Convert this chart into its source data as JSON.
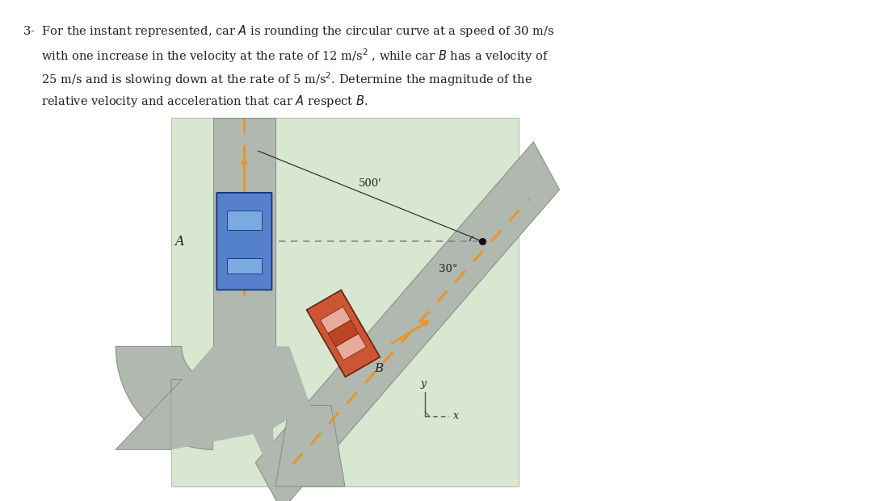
{
  "bg_color": "#FFFFFF",
  "diagram_bg": "#d8e8d0",
  "road_color": "#b0b8b0",
  "road_edge_color": "#888888",
  "dash_color": "#e8952a",
  "text_color": "#222222",
  "label_500": "500'",
  "label_30": "30°",
  "label_A": "A",
  "label_B": "B",
  "label_x": "x",
  "label_y": "y"
}
